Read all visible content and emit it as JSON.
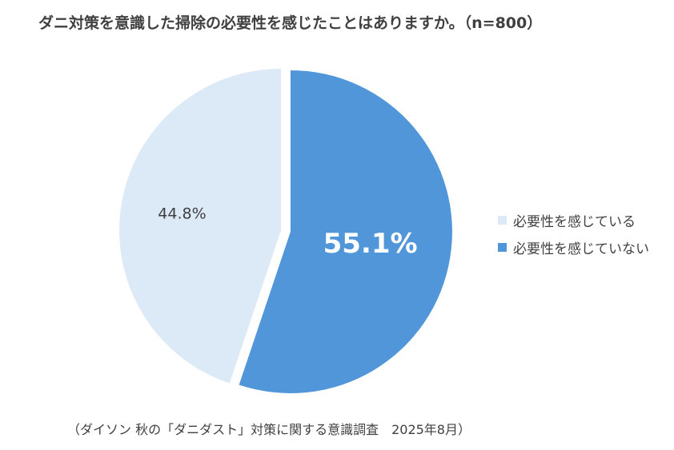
{
  "title": "ダニ対策を意識した掃除の必要性を感じたことはありますか。（n=800）",
  "source": "（ダイソン 秋の「ダニダスト」対策に関する意識調査　2025年8月）",
  "chart_data": {
    "type": "pie",
    "title": "ダニ対策を意識した掃除の必要性を感じたことはありますか。（n=800）",
    "n": 800,
    "categories": [
      "必要性を感じている",
      "必要性を感じていない"
    ],
    "values": [
      44.8,
      55.1
    ],
    "labels": [
      "44.8%",
      "55.1%"
    ],
    "colors": [
      "#DCE9F7",
      "#5096D9"
    ],
    "label_colors": [
      "#404040",
      "#FFFFFF"
    ],
    "start_angle": "12 o'clock, clockwise; '必要性を感じていない' first",
    "exploded": true,
    "legend_position": "right"
  }
}
